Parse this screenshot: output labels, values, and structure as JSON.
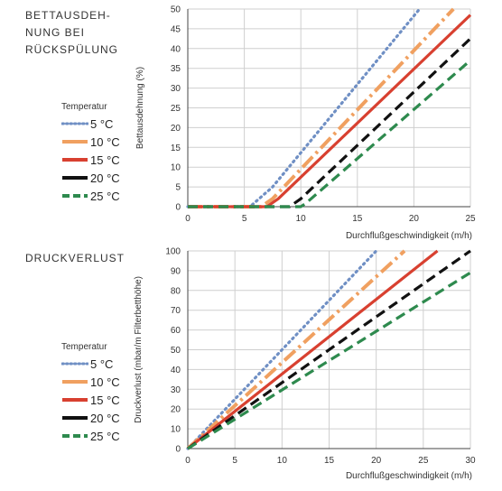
{
  "chart_data": [
    {
      "type": "line",
      "panel_title": "BETTAUSDEH-\nNUNG BEI\nRÜCKSPÜLUNG",
      "legend_title": "Temperatur",
      "xlabel": "Durchflußgeschwindigkeit (m/h)",
      "ylabel": "Bettausdehnung (%)",
      "xlim": [
        0,
        25
      ],
      "ylim": [
        0,
        50
      ],
      "xticks": [
        0,
        5,
        10,
        15,
        20,
        25
      ],
      "yticks": [
        0,
        5,
        10,
        15,
        20,
        25,
        30,
        35,
        40,
        45,
        50
      ],
      "grid": true,
      "series": [
        {
          "name": "5 °C",
          "color": "#6f8fc4",
          "style": "dotted",
          "x": [
            0,
            5.5,
            7.5,
            20.5
          ],
          "y": [
            0,
            0,
            5,
            50
          ]
        },
        {
          "name": "10 °C",
          "color": "#f0a060",
          "style": "dashdot",
          "x": [
            0,
            6.5,
            7.5,
            23.5
          ],
          "y": [
            0,
            0,
            2,
            50
          ]
        },
        {
          "name": "15 °C",
          "color": "#d84030",
          "style": "solid",
          "x": [
            0,
            7,
            8,
            25
          ],
          "y": [
            0,
            0,
            2,
            48.5
          ]
        },
        {
          "name": "20 °C",
          "color": "#111111",
          "style": "dashed",
          "x": [
            0,
            9,
            10,
            25
          ],
          "y": [
            0,
            0,
            2,
            42.5
          ]
        },
        {
          "name": "25 °C",
          "color": "#2e8a4e",
          "style": "dashed",
          "x": [
            0,
            10,
            10.5,
            25
          ],
          "y": [
            0,
            0,
            1,
            37
          ]
        }
      ]
    },
    {
      "type": "line",
      "panel_title": "DRUCKVERLUST",
      "legend_title": "Temperatur",
      "xlabel": "Durchflußgeschwindigkeit (m/h)",
      "ylabel": "Druckverlust (mbar/m Filterbetthöhe)",
      "xlim": [
        0,
        30
      ],
      "ylim": [
        0,
        100
      ],
      "xticks": [
        0,
        5,
        10,
        15,
        20,
        25,
        30
      ],
      "yticks": [
        0,
        10,
        20,
        30,
        40,
        50,
        60,
        70,
        80,
        90,
        100
      ],
      "grid": true,
      "series": [
        {
          "name": "5 °C",
          "color": "#6f8fc4",
          "style": "dotted",
          "x": [
            0,
            20
          ],
          "y": [
            0,
            100
          ]
        },
        {
          "name": "10 °C",
          "color": "#f0a060",
          "style": "dashdot",
          "x": [
            0,
            23
          ],
          "y": [
            0,
            100
          ]
        },
        {
          "name": "15 °C",
          "color": "#d84030",
          "style": "solid",
          "x": [
            0,
            26.5
          ],
          "y": [
            0,
            100
          ]
        },
        {
          "name": "20 °C",
          "color": "#111111",
          "style": "dashed",
          "x": [
            0,
            30
          ],
          "y": [
            0,
            100
          ]
        },
        {
          "name": "25 °C",
          "color": "#2e8a4e",
          "style": "dashed",
          "x": [
            0,
            30
          ],
          "y": [
            0,
            89
          ]
        }
      ]
    }
  ]
}
